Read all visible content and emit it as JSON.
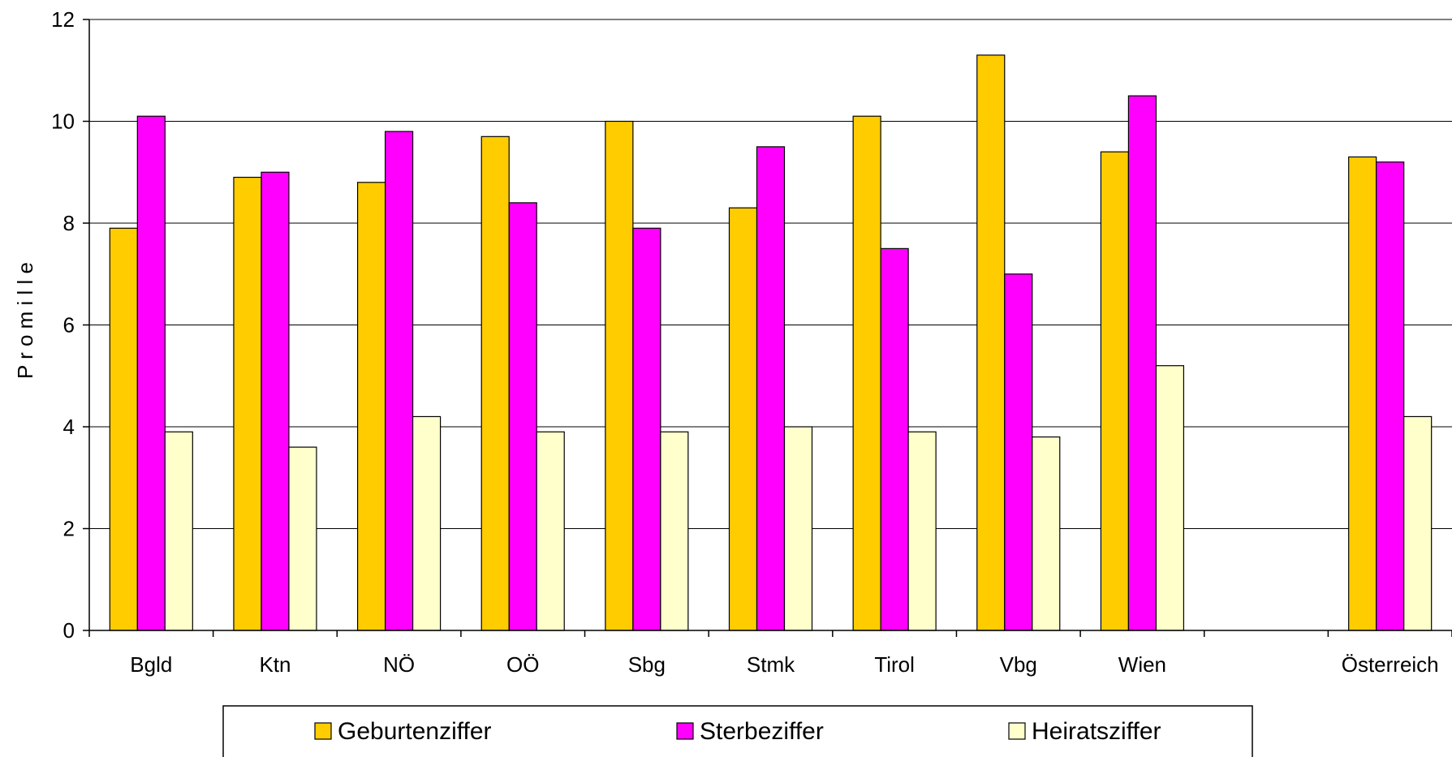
{
  "chart_data": {
    "type": "bar",
    "ylabel": "P r o m i l l e",
    "ylim": [
      0,
      12
    ],
    "yticks": [
      0,
      2,
      4,
      6,
      8,
      10,
      12
    ],
    "grid": true,
    "legend_position": "bottom",
    "categories": [
      "Bgld",
      "Ktn",
      "NÖ",
      "OÖ",
      "Sbg",
      "Stmk",
      "Tirol",
      "Vbg",
      "Wien",
      "",
      "Österreich"
    ],
    "series": [
      {
        "name": "Geburtenziffer",
        "color": "#FFCC00",
        "values": [
          7.9,
          8.9,
          8.8,
          9.7,
          10.0,
          8.3,
          10.1,
          11.3,
          9.4,
          null,
          9.3
        ]
      },
      {
        "name": "Sterbeziffer",
        "color": "#FF00FF",
        "values": [
          10.1,
          9.0,
          9.8,
          8.4,
          7.9,
          9.5,
          7.5,
          7.0,
          10.5,
          null,
          9.2
        ]
      },
      {
        "name": "Heiratsziffer",
        "color": "#FFFFCC",
        "values": [
          3.9,
          3.6,
          4.2,
          3.9,
          3.9,
          4.0,
          3.9,
          3.8,
          5.2,
          null,
          4.2
        ]
      }
    ]
  }
}
